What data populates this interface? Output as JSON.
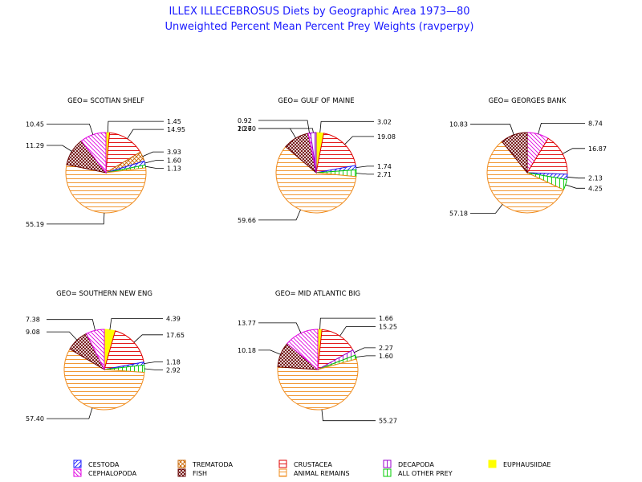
{
  "header": {
    "title": "ILLEX ILLECEBROSUS Diets by Geographic Area 1973—80",
    "subtitle": "Unweighted Percent Mean Percent Prey  Weights (ravperpy)"
  },
  "legend": [
    {
      "key": "cestoda",
      "label": "CESTODA",
      "color": "#1a1aff",
      "pattern": "diag-right"
    },
    {
      "key": "trematoda",
      "label": "TREMATODA",
      "color": "#c86400",
      "pattern": "cross-diag"
    },
    {
      "key": "crustacea",
      "label": "CRUSTACEA",
      "color": "#e00000",
      "pattern": "horizontal"
    },
    {
      "key": "decapoda",
      "label": "DECAPODA",
      "color": "#9900cc",
      "pattern": "vertical"
    },
    {
      "key": "euphausiidae",
      "label": "EUPHAUSIIDAE",
      "color": "#ffff00",
      "pattern": "solid"
    },
    {
      "key": "cephalopoda",
      "label": "CEPHALOPODA",
      "color": "#e000e0",
      "pattern": "diag-left"
    },
    {
      "key": "fish",
      "label": "FISH",
      "color": "#660000",
      "pattern": "crosshatch"
    },
    {
      "key": "animal_remains",
      "label": "ANIMAL REMAINS",
      "color": "#f08c1e",
      "pattern": "horizontal"
    },
    {
      "key": "all_other_prey",
      "label": "ALL OTHER PREY",
      "color": "#00cc00",
      "pattern": "vertical"
    }
  ],
  "chart_data": [
    {
      "type": "pie",
      "title": "GEO= SCOTIAN SHELF",
      "slices": [
        {
          "category": "euphausiidae",
          "value": 1.45,
          "label": "1.45"
        },
        {
          "category": "crustacea",
          "value": 14.95,
          "label": "14.95"
        },
        {
          "category": "trematoda",
          "value": 3.93,
          "label": "3.93"
        },
        {
          "category": "cestoda",
          "value": 1.6,
          "label": "1.60"
        },
        {
          "category": "all_other_prey",
          "value": 1.13,
          "label": "1.13"
        },
        {
          "category": "animal_remains",
          "value": 55.19,
          "label": "55.19"
        },
        {
          "category": "fish",
          "value": 11.29,
          "label": "11.29"
        },
        {
          "category": "cephalopoda",
          "value": 10.45,
          "label": "10.45"
        }
      ]
    },
    {
      "type": "pie",
      "title": "GEO= GULF OF MAINE",
      "slices": [
        {
          "category": "euphausiidae",
          "value": 3.02,
          "label": "3.02"
        },
        {
          "category": "crustacea",
          "value": 19.08,
          "label": "19.08"
        },
        {
          "category": "cestoda",
          "value": 1.74,
          "label": "1.74"
        },
        {
          "category": "all_other_prey",
          "value": 2.71,
          "label": "2.71"
        },
        {
          "category": "animal_remains",
          "value": 59.66,
          "label": "59.66"
        },
        {
          "category": "fish",
          "value": 10.6,
          "label": "10.60"
        },
        {
          "category": "cephalopoda",
          "value": 0.92,
          "label": "0.92"
        },
        {
          "category": "decapoda",
          "value": 2.27,
          "label": "2.27"
        }
      ]
    },
    {
      "type": "pie",
      "title": "GEO= GEORGES BANK",
      "slices": [
        {
          "category": "cephalopoda",
          "value": 8.74,
          "label": "8.74"
        },
        {
          "category": "crustacea",
          "value": 16.87,
          "label": "16.87"
        },
        {
          "category": "cestoda",
          "value": 2.13,
          "label": "2.13"
        },
        {
          "category": "all_other_prey",
          "value": 4.25,
          "label": "4.25"
        },
        {
          "category": "animal_remains",
          "value": 57.18,
          "label": "57.18"
        },
        {
          "category": "fish",
          "value": 10.83,
          "label": "10.83"
        }
      ]
    },
    {
      "type": "pie",
      "title": "GEO= SOUTHERN NEW ENG",
      "slices": [
        {
          "category": "euphausiidae",
          "value": 4.39,
          "label": "4.39"
        },
        {
          "category": "crustacea",
          "value": 17.65,
          "label": "17.65"
        },
        {
          "category": "cestoda",
          "value": 1.18,
          "label": "1.18"
        },
        {
          "category": "all_other_prey",
          "value": 2.92,
          "label": "2.92"
        },
        {
          "category": "animal_remains",
          "value": 57.4,
          "label": "57.40"
        },
        {
          "category": "fish",
          "value": 9.08,
          "label": "9.08"
        },
        {
          "category": "cephalopoda",
          "value": 7.38,
          "label": "7.38"
        }
      ]
    },
    {
      "type": "pie",
      "title": "GEO= MID ATLANTIC BIG",
      "slices": [
        {
          "category": "euphausiidae",
          "value": 1.66,
          "label": "1.66"
        },
        {
          "category": "crustacea",
          "value": 15.25,
          "label": "15.25"
        },
        {
          "category": "decapoda",
          "value": 2.27,
          "label": "2.27"
        },
        {
          "category": "all_other_prey",
          "value": 1.6,
          "label": "1.60"
        },
        {
          "category": "animal_remains",
          "value": 55.27,
          "label": "55.27"
        },
        {
          "category": "fish",
          "value": 10.18,
          "label": "10.18"
        },
        {
          "category": "cephalopoda",
          "value": 13.77,
          "label": "13.77"
        }
      ]
    }
  ]
}
